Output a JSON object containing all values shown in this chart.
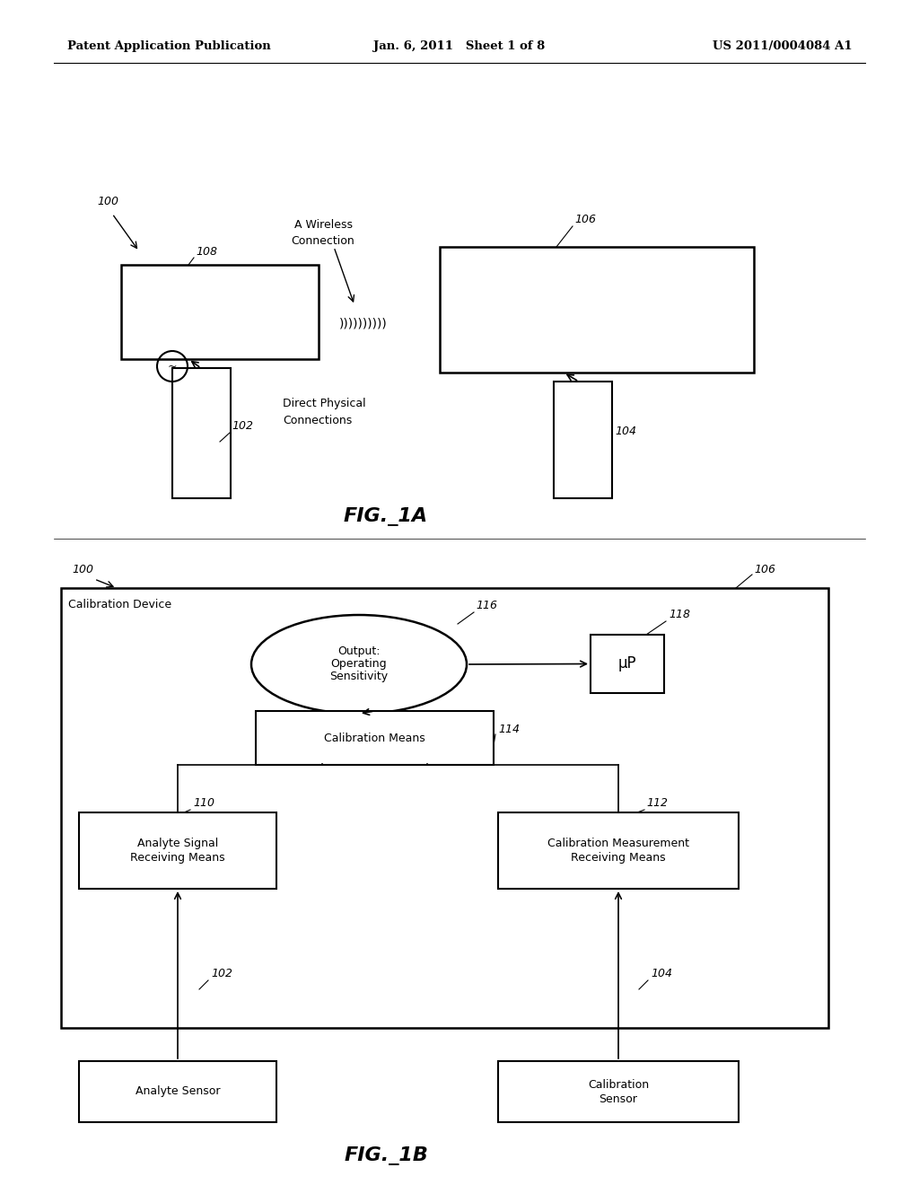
{
  "background_color": "#ffffff",
  "header_left": "Patent Application Publication",
  "header_center": "Jan. 6, 2011   Sheet 1 of 8",
  "header_right": "US 2011/0004084 A1",
  "fig1a_label": "FIG._1A",
  "fig1b_label": "FIG._1B"
}
